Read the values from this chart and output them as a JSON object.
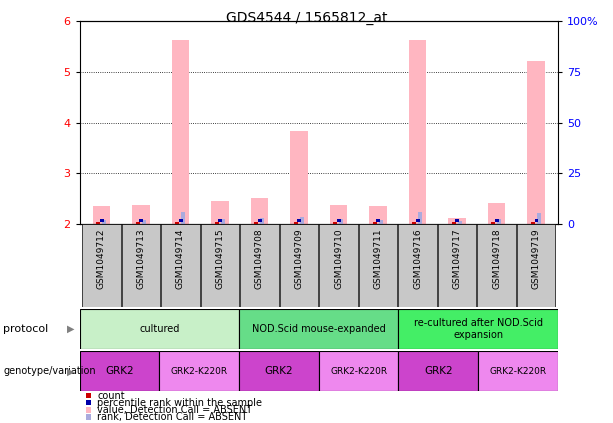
{
  "title": "GDS4544 / 1565812_at",
  "samples": [
    "GSM1049712",
    "GSM1049713",
    "GSM1049714",
    "GSM1049715",
    "GSM1049708",
    "GSM1049709",
    "GSM1049710",
    "GSM1049711",
    "GSM1049716",
    "GSM1049717",
    "GSM1049718",
    "GSM1049719"
  ],
  "value_absent": [
    2.35,
    2.38,
    5.62,
    2.45,
    2.52,
    3.84,
    2.38,
    2.35,
    5.62,
    2.12,
    2.42,
    5.22
  ],
  "rank_absent": [
    0.08,
    0.09,
    0.25,
    0.11,
    0.12,
    0.15,
    0.1,
    0.09,
    0.25,
    0.07,
    0.11,
    0.23
  ],
  "count_height": [
    0.05,
    0.05,
    0.05,
    0.05,
    0.05,
    0.05,
    0.05,
    0.05,
    0.05,
    0.05,
    0.05,
    0.05
  ],
  "percentile_height": [
    0.05,
    0.05,
    0.05,
    0.05,
    0.05,
    0.05,
    0.05,
    0.05,
    0.05,
    0.05,
    0.05,
    0.05
  ],
  "ylim": [
    2.0,
    6.0
  ],
  "yticks_left": [
    2,
    3,
    4,
    5,
    6
  ],
  "yticks_right": [
    0,
    25,
    50,
    75,
    100
  ],
  "color_pink": "#FFB6C1",
  "color_lightblue": "#AAAADD",
  "color_red": "#CC0000",
  "color_blue": "#0000AA",
  "color_gray": "#C8C8C8",
  "proto_colors": [
    "#C8F0C8",
    "#66DD88",
    "#44EE66"
  ],
  "geno_colors": [
    "#CC44CC",
    "#EE88EE"
  ],
  "protocols": [
    {
      "label": "cultured",
      "start": 0,
      "end": 4
    },
    {
      "label": "NOD.Scid mouse-expanded",
      "start": 4,
      "end": 8
    },
    {
      "label": "re-cultured after NOD.Scid\nexpansion",
      "start": 8,
      "end": 12
    }
  ],
  "genotypes": [
    {
      "label": "GRK2",
      "start": 0,
      "end": 2,
      "gidx": 0
    },
    {
      "label": "GRK2-K220R",
      "start": 2,
      "end": 4,
      "gidx": 1
    },
    {
      "label": "GRK2",
      "start": 4,
      "end": 6,
      "gidx": 0
    },
    {
      "label": "GRK2-K220R",
      "start": 6,
      "end": 8,
      "gidx": 1
    },
    {
      "label": "GRK2",
      "start": 8,
      "end": 10,
      "gidx": 0
    },
    {
      "label": "GRK2-K220R",
      "start": 10,
      "end": 12,
      "gidx": 1
    }
  ],
  "legend_items": [
    {
      "label": "count",
      "color": "#CC0000"
    },
    {
      "label": "percentile rank within the sample",
      "color": "#0000AA"
    },
    {
      "label": "value, Detection Call = ABSENT",
      "color": "#FFB6C1"
    },
    {
      "label": "rank, Detection Call = ABSENT",
      "color": "#AAAADD"
    }
  ]
}
